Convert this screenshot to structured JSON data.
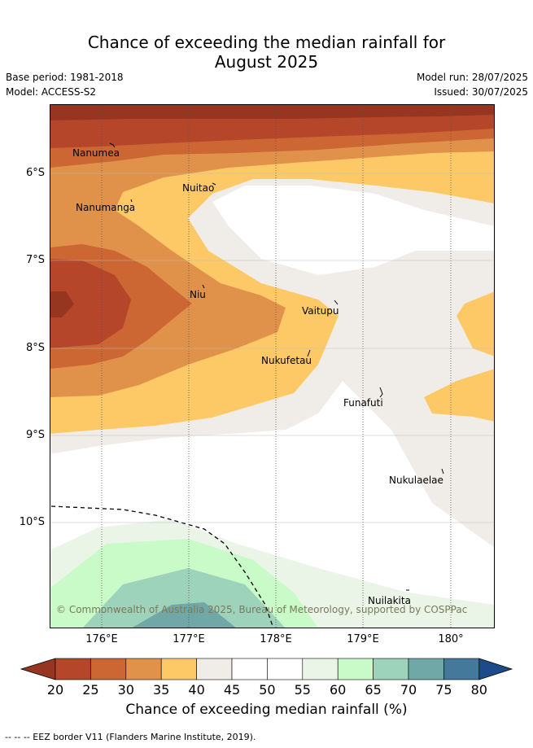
{
  "header": {
    "title_line1": "Chance of exceeding the median rainfall for",
    "title_line2": "August 2025",
    "base_period": "Base period: 1981-2018",
    "model": "Model: ACCESS-S2",
    "model_run": "Model run: 28/07/2025",
    "issued": "Issued: 30/07/2025"
  },
  "map": {
    "lat_labels": [
      "6°S",
      "7°S",
      "8°S",
      "9°S",
      "10°S"
    ],
    "lon_labels": [
      "176°E",
      "177°E",
      "178°E",
      "179°E",
      "180°"
    ],
    "places": [
      "Nanumea",
      "Nuitao",
      "Nanumanga",
      "Niu",
      "Vaitupu",
      "Nukufetau",
      "Funafuti",
      "Nukulaelae",
      "Nuilakita"
    ],
    "copyright": "© Commonwealth of Australia 2025, Bureau of Meteorology, supported by COSPPac"
  },
  "colorbar": {
    "ticks": [
      "20",
      "25",
      "30",
      "35",
      "40",
      "45",
      "50",
      "55",
      "60",
      "65",
      "70",
      "75",
      "80"
    ],
    "colors": [
      "#b5462a",
      "#cc6633",
      "#e0924a",
      "#fdc967",
      "#f0ede8",
      "#ffffff",
      "#ffffff",
      "#eaf5e8",
      "#c8fbc8",
      "#9dd2bb",
      "#70a8a8",
      "#44799c"
    ],
    "under_color": "#963621",
    "over_color": "#1d4b8a",
    "label": "Chance of exceeding median rainfall (%)"
  },
  "footer": {
    "eez_note": "--  --  -- EEZ border V11 (Flanders Marine Institute, 2019)."
  }
}
